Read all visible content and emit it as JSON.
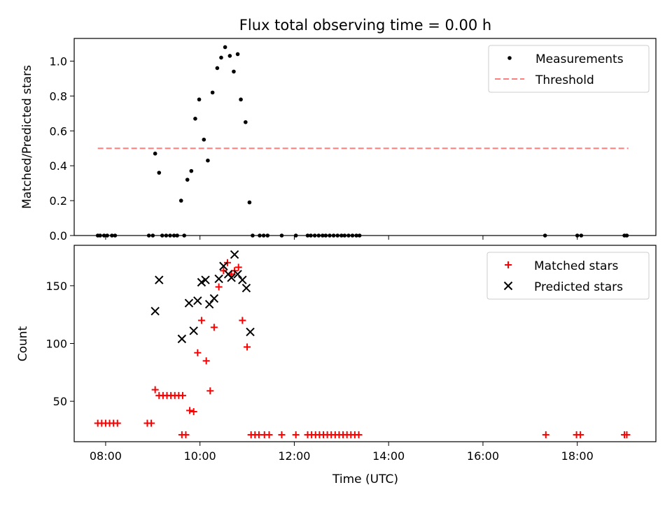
{
  "chart_data": [
    {
      "type": "scatter",
      "title": "Flux total observing time = 0.00 h",
      "xlabel": "",
      "ylabel": "Matched/Predicted stars",
      "ylim": [
        0,
        1.13
      ],
      "yticks": [
        "0.0",
        "0.2",
        "0.4",
        "0.6",
        "0.8",
        "1.0"
      ],
      "ytick_values": [
        0,
        0.2,
        0.4,
        0.6,
        0.8,
        1.0
      ],
      "legend_position": "top-right",
      "colors": {
        "measurements": "#000000",
        "threshold": "#ff7f7f"
      },
      "legend": [
        {
          "label": "Measurements",
          "marker": "dot",
          "color": "#000000"
        },
        {
          "label": "Threshold",
          "marker": "dashed-line",
          "color": "#ff7f7f"
        }
      ],
      "threshold": {
        "value": 0.5,
        "x_start": "07:50",
        "x_end": "19:05"
      },
      "measurements": [
        [
          "07:50",
          0
        ],
        [
          "07:53",
          0
        ],
        [
          "07:58",
          0
        ],
        [
          "08:02",
          0
        ],
        [
          "08:08",
          0
        ],
        [
          "08:12",
          0
        ],
        [
          "08:55",
          0
        ],
        [
          "09:00",
          0
        ],
        [
          "09:03",
          0.47
        ],
        [
          "09:08",
          0.36
        ],
        [
          "09:12",
          0
        ],
        [
          "09:17",
          0
        ],
        [
          "09:22",
          0
        ],
        [
          "09:27",
          0
        ],
        [
          "09:31",
          0
        ],
        [
          "09:36",
          0.2
        ],
        [
          "09:40",
          0
        ],
        [
          "09:44",
          0.32
        ],
        [
          "09:49",
          0.37
        ],
        [
          "09:54",
          0.67
        ],
        [
          "09:59",
          0.78
        ],
        [
          "10:05",
          0.55
        ],
        [
          "10:10",
          0.43
        ],
        [
          "10:16",
          0.82
        ],
        [
          "10:22",
          0.96
        ],
        [
          "10:27",
          1.02
        ],
        [
          "10:32",
          1.08
        ],
        [
          "10:38",
          1.03
        ],
        [
          "10:43",
          0.94
        ],
        [
          "10:48",
          1.04
        ],
        [
          "10:52",
          0.78
        ],
        [
          "10:58",
          0.65
        ],
        [
          "11:03",
          0.19
        ],
        [
          "11:07",
          0
        ],
        [
          "11:16",
          0
        ],
        [
          "11:21",
          0
        ],
        [
          "11:26",
          0
        ],
        [
          "11:44",
          0
        ],
        [
          "12:02",
          0
        ],
        [
          "12:17",
          0
        ],
        [
          "12:21",
          0
        ],
        [
          "12:26",
          0
        ],
        [
          "12:31",
          0
        ],
        [
          "12:36",
          0
        ],
        [
          "12:40",
          0
        ],
        [
          "12:45",
          0
        ],
        [
          "12:50",
          0
        ],
        [
          "12:55",
          0
        ],
        [
          "13:00",
          0
        ],
        [
          "13:04",
          0
        ],
        [
          "13:09",
          0
        ],
        [
          "13:14",
          0
        ],
        [
          "13:19",
          0
        ],
        [
          "13:23",
          0
        ],
        [
          "17:19",
          0
        ],
        [
          "18:00",
          0
        ],
        [
          "18:05",
          0
        ],
        [
          "19:00",
          0
        ],
        [
          "19:03",
          0
        ]
      ]
    },
    {
      "type": "scatter",
      "title": "",
      "xlabel": "Time (UTC)",
      "ylabel": "Count",
      "ylim": [
        15,
        185
      ],
      "xlim": [
        "07:20",
        "19:40"
      ],
      "yticks": [
        "50",
        "100",
        "150"
      ],
      "ytick_values": [
        50,
        100,
        150
      ],
      "xticks": [
        "08:00",
        "10:00",
        "12:00",
        "14:00",
        "16:00",
        "18:00"
      ],
      "xtick_values": [
        "08:00",
        "10:00",
        "12:00",
        "14:00",
        "16:00",
        "18:00"
      ],
      "legend_position": "top-right",
      "colors": {
        "matched": "#ff0000",
        "predicted": "#000000"
      },
      "legend": [
        {
          "label": "Matched stars",
          "marker": "plus",
          "color": "#ff0000"
        },
        {
          "label": "Predicted stars",
          "marker": "x",
          "color": "#000000"
        }
      ],
      "matched": [
        [
          "07:50",
          31
        ],
        [
          "07:55",
          31
        ],
        [
          "08:00",
          31
        ],
        [
          "08:05",
          31
        ],
        [
          "08:10",
          31
        ],
        [
          "08:15",
          31
        ],
        [
          "08:53",
          31
        ],
        [
          "08:58",
          31
        ],
        [
          "09:03",
          60
        ],
        [
          "09:08",
          55
        ],
        [
          "09:13",
          55
        ],
        [
          "09:18",
          55
        ],
        [
          "09:23",
          55
        ],
        [
          "09:28",
          55
        ],
        [
          "09:33",
          55
        ],
        [
          "09:38",
          55
        ],
        [
          "09:37",
          21
        ],
        [
          "09:42",
          21
        ],
        [
          "09:47",
          42
        ],
        [
          "09:52",
          41
        ],
        [
          "09:57",
          92
        ],
        [
          "10:02",
          120
        ],
        [
          "10:08",
          85
        ],
        [
          "10:13",
          59
        ],
        [
          "10:18",
          114
        ],
        [
          "10:24",
          149
        ],
        [
          "10:30",
          163
        ],
        [
          "10:35",
          170
        ],
        [
          "10:40",
          160
        ],
        [
          "10:44",
          163
        ],
        [
          "10:49",
          166
        ],
        [
          "10:54",
          120
        ],
        [
          "11:00",
          97
        ],
        [
          "11:05",
          21
        ],
        [
          "11:10",
          21
        ],
        [
          "11:15",
          21
        ],
        [
          "11:22",
          21
        ],
        [
          "11:28",
          21
        ],
        [
          "11:44",
          21
        ],
        [
          "12:02",
          21
        ],
        [
          "12:17",
          21
        ],
        [
          "12:22",
          21
        ],
        [
          "12:27",
          21
        ],
        [
          "12:32",
          21
        ],
        [
          "12:37",
          21
        ],
        [
          "12:42",
          21
        ],
        [
          "12:47",
          21
        ],
        [
          "12:52",
          21
        ],
        [
          "12:57",
          21
        ],
        [
          "13:02",
          21
        ],
        [
          "13:07",
          21
        ],
        [
          "13:12",
          21
        ],
        [
          "13:17",
          21
        ],
        [
          "13:22",
          21
        ],
        [
          "17:20",
          21
        ],
        [
          "17:59",
          21
        ],
        [
          "18:04",
          21
        ],
        [
          "19:00",
          21
        ],
        [
          "19:03",
          21
        ]
      ],
      "predicted": [
        [
          "09:03",
          128
        ],
        [
          "09:08",
          155
        ],
        [
          "09:37",
          104
        ],
        [
          "09:46",
          135
        ],
        [
          "09:52",
          111
        ],
        [
          "09:57",
          137
        ],
        [
          "10:02",
          153
        ],
        [
          "10:07",
          155
        ],
        [
          "10:12",
          134
        ],
        [
          "10:18",
          139
        ],
        [
          "10:24",
          156
        ],
        [
          "10:30",
          167
        ],
        [
          "10:36",
          160
        ],
        [
          "10:40",
          157
        ],
        [
          "10:44",
          177
        ],
        [
          "10:48",
          160
        ],
        [
          "10:54",
          155
        ],
        [
          "10:59",
          148
        ],
        [
          "11:04",
          110
        ]
      ]
    }
  ]
}
